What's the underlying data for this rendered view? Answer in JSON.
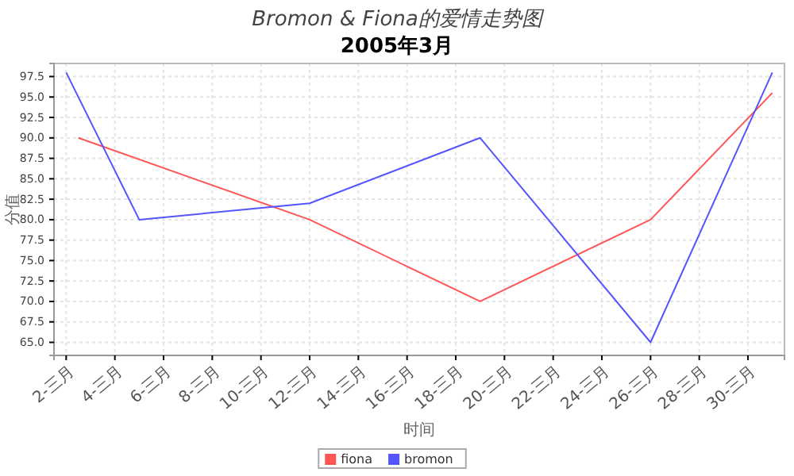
{
  "chart_data": {
    "type": "line",
    "title": "Bromon & Fiona的爱情走势图",
    "subtitle": "2005年3月",
    "xlabel": "时间",
    "ylabel": "分值",
    "series": [
      {
        "name": "fiona",
        "color": "#ff5555",
        "x": [
          2.5,
          12,
          19,
          26,
          31
        ],
        "values": [
          90,
          80,
          70,
          80,
          95.5
        ]
      },
      {
        "name": "bromon",
        "color": "#5555ff",
        "x": [
          2,
          5,
          12,
          19,
          26,
          31
        ],
        "values": [
          98,
          80,
          82,
          90,
          65,
          98
        ]
      }
    ],
    "xlim": [
      1.5,
      31.5
    ],
    "ylim": [
      63.4,
      99.1
    ],
    "xticks": [
      {
        "value": 2,
        "label": "2-三月"
      },
      {
        "value": 4,
        "label": "4-三月"
      },
      {
        "value": 6,
        "label": "6-三月"
      },
      {
        "value": 8,
        "label": "8-三月"
      },
      {
        "value": 10,
        "label": "10-三月"
      },
      {
        "value": 12,
        "label": "12-三月"
      },
      {
        "value": 14,
        "label": "14-三月"
      },
      {
        "value": 16,
        "label": "16-三月"
      },
      {
        "value": 18,
        "label": "18-三月"
      },
      {
        "value": 20,
        "label": "20-三月"
      },
      {
        "value": 22,
        "label": "22-三月"
      },
      {
        "value": 24,
        "label": "24-三月"
      },
      {
        "value": 26,
        "label": "26-三月"
      },
      {
        "value": 28,
        "label": "28-三月"
      },
      {
        "value": 30,
        "label": "30-三月"
      }
    ],
    "yticks": [
      {
        "value": 65,
        "label": "65.0"
      },
      67.5,
      {
        "value": 70,
        "label": "70.0"
      },
      72.5,
      {
        "value": 75,
        "label": "75.0"
      },
      77.5,
      {
        "value": 80,
        "label": "80.0"
      },
      82.5,
      {
        "value": 85,
        "label": "85.0"
      },
      87.5,
      {
        "value": 90,
        "label": "90.0"
      },
      92.5,
      {
        "value": 95,
        "label": "95.0"
      },
      97.5
    ],
    "grid": true,
    "legend": "bottom",
    "marker": "none",
    "line_style": "solid"
  }
}
